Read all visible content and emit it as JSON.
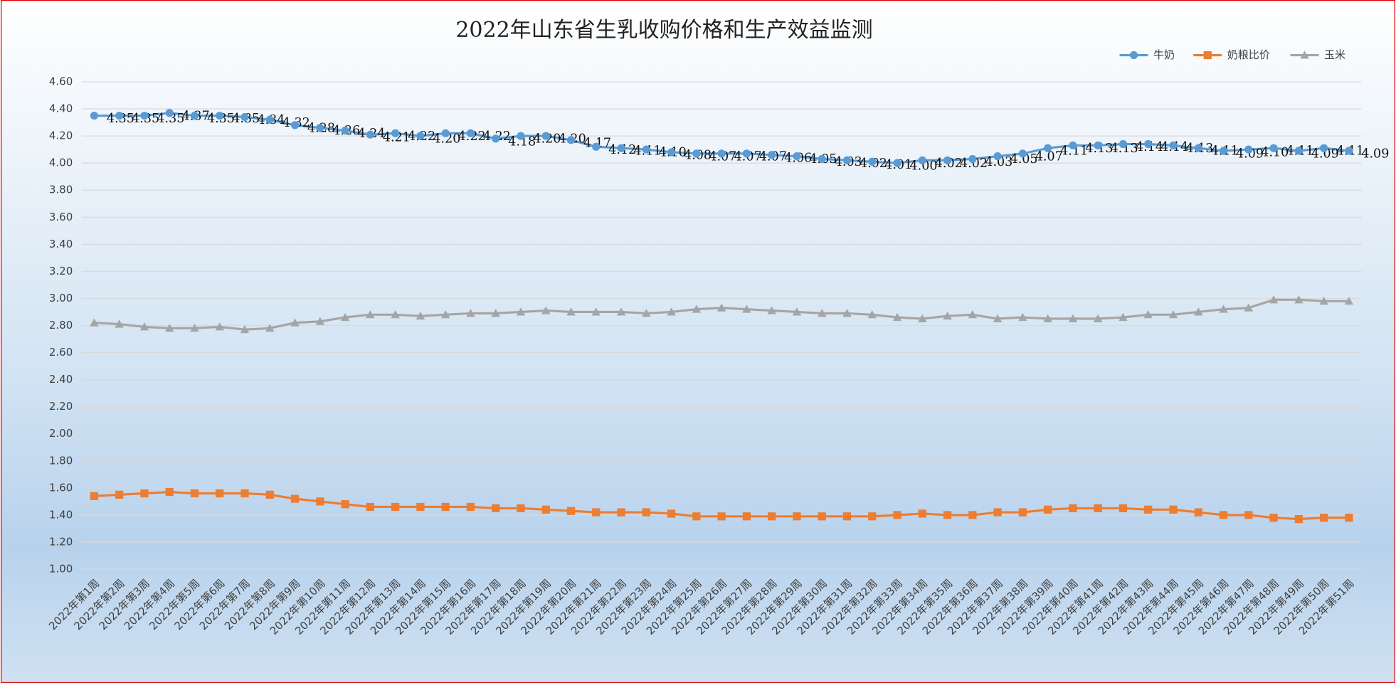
{
  "chart_data": {
    "type": "line",
    "title": "2022年山东省生乳收购价格和生产效益监测",
    "categories": [
      "2022年第1周",
      "2022年第2周",
      "2022年第3周",
      "2022年第4周",
      "2022年第5周",
      "2022年第6周",
      "2022年第7周",
      "2022年第8周",
      "2022年第9周",
      "2022年第10周",
      "2022年第11周",
      "2022年第12周",
      "2022年第13周",
      "2022年第14周",
      "2022年第15周",
      "2022年第16周",
      "2022年第17周",
      "2022年第18周",
      "2022年第19周",
      "2022年第20周",
      "2022年第21周",
      "2022年第22周",
      "2022年第23周",
      "2022年第24周",
      "2022年第25周",
      "2022年第26周",
      "2022年第27周",
      "2022年第28周",
      "2022年第29周",
      "2022年第30周",
      "2022年第31周",
      "2022年第32周",
      "2022年第33周",
      "2022年第34周",
      "2022年第35周",
      "2022年第36周",
      "2022年第37周",
      "2022年第38周",
      "2022年第39周",
      "2022年第40周",
      "2022年第41周",
      "2022年第42周",
      "2022年第43周",
      "2022年第44周",
      "2022年第45周",
      "2022年第46周",
      "2022年第47周",
      "2022年第48周",
      "2022年第49周",
      "2022年第50周",
      "2022年第51周"
    ],
    "series": [
      {
        "name": "牛奶",
        "color": "#5b9bd5",
        "marker": "circle",
        "values": [
          4.35,
          4.35,
          4.35,
          4.37,
          4.35,
          4.35,
          4.34,
          4.32,
          4.28,
          4.26,
          4.24,
          4.21,
          4.22,
          4.2,
          4.22,
          4.22,
          4.18,
          4.2,
          4.2,
          4.17,
          4.12,
          4.11,
          4.1,
          4.08,
          4.07,
          4.07,
          4.07,
          4.06,
          4.05,
          4.03,
          4.02,
          4.01,
          4.0,
          4.02,
          4.02,
          4.03,
          4.05,
          4.07,
          4.11,
          4.13,
          4.13,
          4.14,
          4.14,
          4.13,
          4.11,
          4.09,
          4.1,
          4.11,
          4.09,
          4.11,
          4.09
        ],
        "value_labels": [
          "4.35",
          "4.35",
          "4.35",
          "4.37",
          "4.35",
          "4.35",
          "4.34",
          "4.32",
          "4.28",
          "4.26",
          "4.24",
          "4.21",
          "4.22",
          "4.20",
          "4.22",
          "4.22",
          "4.18",
          "4.20",
          "4.20",
          "4.17",
          "4.12",
          "4.11",
          "4.10",
          "4.08",
          "4.07",
          "4.07",
          "4.07",
          "4.06",
          "4.05",
          "4.03",
          "4.02",
          "4.01",
          "4.00",
          "4.02",
          "4.02",
          "4.03",
          "4.05",
          "4.07",
          "4.11",
          "4.13",
          "4.13",
          "4.14",
          "4.14",
          "4.13",
          "4.11",
          "4.09",
          "4.10",
          "4.11",
          "4.09",
          "4.11",
          "4.09"
        ]
      },
      {
        "name": "奶粮比价",
        "color": "#ed7d31",
        "marker": "square",
        "values": [
          1.54,
          1.55,
          1.56,
          1.57,
          1.56,
          1.56,
          1.56,
          1.55,
          1.52,
          1.5,
          1.48,
          1.46,
          1.46,
          1.46,
          1.46,
          1.46,
          1.45,
          1.45,
          1.44,
          1.43,
          1.42,
          1.42,
          1.42,
          1.41,
          1.39,
          1.39,
          1.39,
          1.39,
          1.39,
          1.39,
          1.39,
          1.39,
          1.4,
          1.41,
          1.4,
          1.4,
          1.42,
          1.42,
          1.44,
          1.45,
          1.45,
          1.45,
          1.44,
          1.44,
          1.42,
          1.4,
          1.4,
          1.38,
          1.37,
          1.38,
          1.38
        ]
      },
      {
        "name": "玉米",
        "color": "#a5a5a5",
        "marker": "triangle",
        "values": [
          2.82,
          2.81,
          2.79,
          2.78,
          2.78,
          2.79,
          2.77,
          2.78,
          2.82,
          2.83,
          2.86,
          2.88,
          2.88,
          2.87,
          2.88,
          2.89,
          2.89,
          2.9,
          2.91,
          2.9,
          2.9,
          2.9,
          2.89,
          2.9,
          2.92,
          2.93,
          2.92,
          2.91,
          2.9,
          2.89,
          2.89,
          2.88,
          2.86,
          2.85,
          2.87,
          2.88,
          2.85,
          2.86,
          2.85,
          2.85,
          2.85,
          2.86,
          2.88,
          2.88,
          2.9,
          2.92,
          2.93,
          2.99,
          2.99,
          2.98,
          2.98
        ]
      }
    ],
    "ylim": [
      1.0,
      4.6
    ],
    "yticks": [
      {
        "value": 1.0,
        "label": "1.00"
      },
      {
        "value": 1.2,
        "label": "1.20"
      },
      {
        "value": 1.4,
        "label": "1.40"
      },
      {
        "value": 1.6,
        "label": "1.60"
      },
      {
        "value": 1.8,
        "label": "1.80"
      },
      {
        "value": 2.0,
        "label": "2.00"
      },
      {
        "value": 2.2,
        "label": "2.20"
      },
      {
        "value": 2.4,
        "label": "2.40"
      },
      {
        "value": 2.6,
        "label": "2.60"
      },
      {
        "value": 2.8,
        "label": "2.80"
      },
      {
        "value": 3.0,
        "label": "3.00"
      },
      {
        "value": 3.2,
        "label": "3.20"
      },
      {
        "value": 3.4,
        "label": "3.40"
      },
      {
        "value": 3.6,
        "label": "3.60"
      },
      {
        "value": 3.8,
        "label": "3.80"
      },
      {
        "value": 4.0,
        "label": "4.00"
      },
      {
        "value": 4.2,
        "label": "4.20"
      },
      {
        "value": 4.4,
        "label": "4.40"
      },
      {
        "value": 4.6,
        "label": "4.60"
      }
    ],
    "grid": true,
    "legend": "top-right"
  }
}
